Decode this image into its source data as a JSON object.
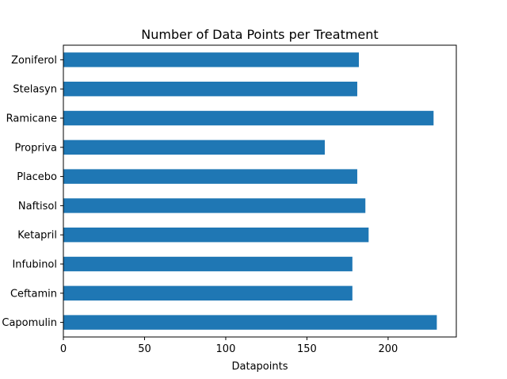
{
  "chart_data": {
    "type": "bar",
    "orientation": "horizontal",
    "title": "Number of Data Points per Treatment",
    "xlabel": "Datapoints",
    "ylabel": "",
    "categories": [
      "Capomulin",
      "Ceftamin",
      "Infubinol",
      "Ketapril",
      "Naftisol",
      "Placebo",
      "Propriva",
      "Ramicane",
      "Stelasyn",
      "Zoniferol"
    ],
    "values": [
      230,
      178,
      178,
      188,
      186,
      181,
      161,
      228,
      181,
      182
    ],
    "xlim": [
      0,
      242
    ],
    "xticks": [
      0,
      50,
      100,
      150,
      200
    ],
    "grid": false,
    "bar_color": "#1f77b4"
  }
}
